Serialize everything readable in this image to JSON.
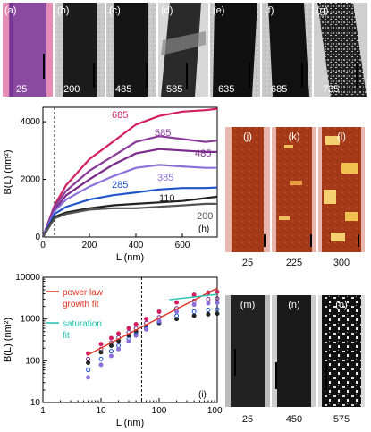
{
  "top_panels": [
    {
      "letter": "(a)",
      "value": "25"
    },
    {
      "letter": "(b)",
      "value": "200"
    },
    {
      "letter": "(c)",
      "value": "485"
    },
    {
      "letter": "(d)",
      "value": "585"
    },
    {
      "letter": "(e)",
      "value": "635"
    },
    {
      "letter": "(f)",
      "value": "685"
    },
    {
      "letter": "(g)",
      "value": "735"
    }
  ],
  "side_panels_jkl": [
    {
      "letter": "(j)",
      "value": "25"
    },
    {
      "letter": "(k)",
      "value": "225"
    },
    {
      "letter": "(l)",
      "value": "300"
    }
  ],
  "side_panels_mno": [
    {
      "letter": "(m)",
      "value": "25"
    },
    {
      "letter": "(n)",
      "value": "450"
    },
    {
      "letter": "(o)",
      "value": "575"
    }
  ],
  "chart_data": [
    {
      "type": "line",
      "panel_label": "(h)",
      "xlabel": "L (nm)",
      "ylabel": "B(L)  (nm²)",
      "xlim": [
        0,
        750
      ],
      "ylim": [
        0,
        4500
      ],
      "xticks": [
        "0",
        "200",
        "400",
        "600"
      ],
      "yticks": [
        "0",
        "2000",
        "4000"
      ],
      "vline_x": 50,
      "series": [
        {
          "name": "685",
          "color": "#d02060",
          "x": [
            0,
            50,
            100,
            200,
            300,
            400,
            500,
            600,
            700,
            750
          ],
          "y": [
            0,
            1100,
            1800,
            2700,
            3300,
            3900,
            4200,
            4350,
            4400,
            4450
          ]
        },
        {
          "name": "585",
          "color": "#8a3a9a",
          "x": [
            0,
            50,
            100,
            200,
            300,
            400,
            500,
            600,
            700,
            750
          ],
          "y": [
            0,
            1050,
            1600,
            2300,
            2800,
            3300,
            3500,
            3400,
            3300,
            3350
          ]
        },
        {
          "name": "485",
          "color": "#7a2a8a",
          "x": [
            0,
            50,
            100,
            200,
            300,
            400,
            500,
            600,
            700,
            750
          ],
          "y": [
            0,
            950,
            1450,
            2000,
            2500,
            2900,
            3050,
            3000,
            2950,
            2950
          ]
        },
        {
          "name": "385",
          "color": "#8a70d8",
          "x": [
            0,
            50,
            100,
            200,
            300,
            400,
            500,
            600,
            700,
            750
          ],
          "y": [
            0,
            900,
            1300,
            1750,
            2100,
            2400,
            2500,
            2450,
            2400,
            2400
          ]
        },
        {
          "name": "285",
          "color": "#2255cc",
          "x": [
            0,
            50,
            100,
            200,
            300,
            400,
            500,
            600,
            700,
            750
          ],
          "y": [
            0,
            800,
            1050,
            1300,
            1450,
            1550,
            1650,
            1700,
            1700,
            1720
          ]
        },
        {
          "name": "110",
          "color": "#222222",
          "x": [
            0,
            50,
            100,
            200,
            300,
            400,
            500,
            600,
            700,
            750
          ],
          "y": [
            0,
            700,
            850,
            1000,
            1100,
            1150,
            1200,
            1250,
            1350,
            1400
          ]
        },
        {
          "name": "200",
          "color": "#555555",
          "x": [
            0,
            50,
            100,
            200,
            300,
            400,
            500,
            600,
            700,
            750
          ],
          "y": [
            0,
            650,
            800,
            950,
            1000,
            1000,
            1050,
            1100,
            1150,
            1150
          ]
        }
      ]
    },
    {
      "type": "scatter",
      "panel_label": "(i)",
      "xlabel": "L (nm)",
      "ylabel": "B(L)  (nm²)",
      "xscale": "log",
      "yscale": "log",
      "xlim": [
        1,
        1000
      ],
      "ylim": [
        10,
        10000
      ],
      "xticks": [
        "1",
        "10",
        "100",
        "1000"
      ],
      "yticks": [
        "10",
        "100",
        "1000",
        "10000"
      ],
      "vline_x": 50,
      "legend": [
        {
          "text": "power law",
          "color": "#e03020"
        },
        {
          "text": "growth fit",
          "color": "#e03020"
        },
        {
          "text": "saturation",
          "color": "#20c0b0"
        },
        {
          "text": "fit",
          "color": "#20c0b0"
        }
      ],
      "series": [
        {
          "color": "#d02060",
          "x": [
            6,
            10,
            15,
            20,
            30,
            40,
            60,
            100,
            200,
            400,
            700,
            1000
          ],
          "y": [
            150,
            250,
            350,
            450,
            600,
            750,
            1000,
            1500,
            2500,
            3800,
            4300,
            4450
          ]
        },
        {
          "color": "#7a2a8a",
          "x": [
            6,
            10,
            15,
            20,
            30,
            40,
            60,
            100,
            200,
            400,
            700,
            1000
          ],
          "y": [
            110,
            190,
            270,
            360,
            480,
            600,
            800,
            1100,
            1800,
            2700,
            3000,
            3100
          ]
        },
        {
          "color": "#222222",
          "x": [
            6,
            10,
            15,
            20,
            30,
            40,
            60,
            100,
            200,
            400,
            700,
            1000
          ],
          "y": [
            90,
            160,
            230,
            300,
            400,
            500,
            650,
            800,
            1000,
            1200,
            1300,
            1350
          ]
        },
        {
          "color": "#2255cc",
          "x": [
            6,
            10,
            15,
            20,
            30,
            40,
            60,
            100,
            200,
            400,
            700,
            1000
          ],
          "y": [
            60,
            110,
            170,
            230,
            330,
            430,
            600,
            850,
            1200,
            1500,
            1650,
            1700
          ]
        },
        {
          "color": "#8a70d8",
          "x": [
            6,
            10,
            15,
            20,
            30,
            40,
            60,
            100,
            200,
            400,
            700,
            1000
          ],
          "y": [
            40,
            80,
            130,
            190,
            290,
            400,
            560,
            900,
            1500,
            2200,
            2400,
            2450
          ]
        }
      ],
      "fit_lines": [
        {
          "color": "#e03020",
          "x": [
            6,
            1000
          ],
          "y": [
            140,
            5500
          ]
        },
        {
          "color": "#20c0b0",
          "x": [
            150,
            1000
          ],
          "y": [
            2900,
            3900
          ]
        }
      ]
    }
  ]
}
